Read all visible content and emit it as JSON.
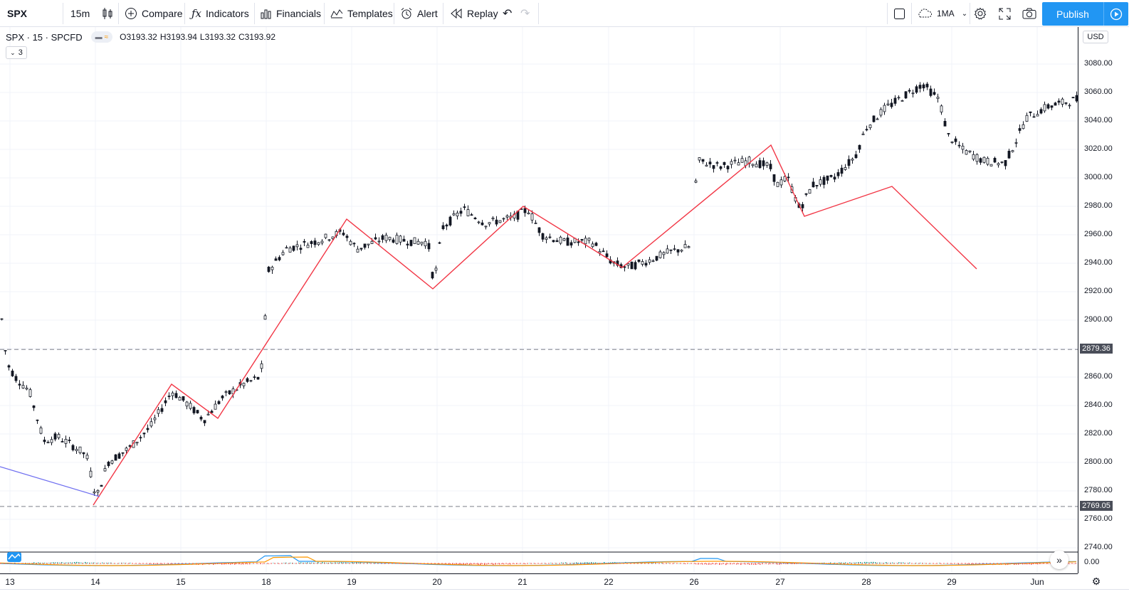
{
  "toolbar": {
    "symbol": "SPX",
    "interval": "15m",
    "compare": "Compare",
    "indicators": "Indicators",
    "financials": "Financials",
    "templates": "Templates",
    "alert": "Alert",
    "replay": "Replay",
    "layout_name": "1MA",
    "publish": "Publish"
  },
  "legend": {
    "title": "SPX · 15 · SPCFD",
    "open": "O3193.32",
    "high": "H3193.94",
    "low": "L3193.32",
    "close": "C3193.92",
    "collapsed_count": "3"
  },
  "price_axis": {
    "currency": "USD",
    "ticks": [
      "3080.00",
      "3060.00",
      "3040.00",
      "3020.00",
      "3000.00",
      "2980.00",
      "2960.00",
      "2940.00",
      "2920.00",
      "2900.00",
      "2880.00",
      "2860.00",
      "2840.00",
      "2820.00",
      "2800.00",
      "2780.00",
      "2760.00",
      "2740.00"
    ],
    "tick_values": [
      3080,
      3060,
      3040,
      3020,
      3000,
      2980,
      2960,
      2940,
      2920,
      2900,
      2880,
      2860,
      2840,
      2820,
      2800,
      2780,
      2760,
      2740
    ],
    "highlight_upper": "2879.36",
    "highlight_lower": "2769.05",
    "oscillator_zero": "0.00"
  },
  "time_axis": {
    "labels": [
      "13",
      "14",
      "15",
      "18",
      "19",
      "20",
      "21",
      "22",
      "26",
      "27",
      "28",
      "29",
      "Jun"
    ]
  },
  "colors": {
    "zigzag": "#f23645",
    "trendline": "#6e6ef0",
    "candle": "#131722",
    "accent": "#2196f3",
    "macd_line": "#2196f3",
    "signal_line": "#ff9800",
    "hist_pos": "#26a69a",
    "hist_neg": "#ef5350"
  },
  "chart_data": {
    "type": "candlestick",
    "symbol": "SPX",
    "interval": "15",
    "ylim": [
      2735,
      3090
    ],
    "horizontal_levels": [
      2879.36,
      2769.05
    ],
    "zigzag": [
      {
        "x": "14",
        "y": 2770
      },
      {
        "x": "15",
        "y": 2855
      },
      {
        "x": "15",
        "y": 2831
      },
      {
        "x": "18-19",
        "y": 2971
      },
      {
        "x": "20",
        "y": 2922
      },
      {
        "x": "21",
        "y": 2980
      },
      {
        "x": "22",
        "y": 2937
      },
      {
        "x": "26-27",
        "y": 3023
      },
      {
        "x": "27",
        "y": 2973
      },
      {
        "x": "28",
        "y": 2994
      },
      {
        "x": "29",
        "y": 2936
      }
    ],
    "trendline": [
      {
        "x": "13",
        "y": 2797
      },
      {
        "x": "14",
        "y": 2776
      }
    ],
    "session_closes": [
      {
        "x": "13",
        "y": 2890
      },
      {
        "x": "14",
        "y": 2800
      },
      {
        "x": "15",
        "y": 2840
      },
      {
        "x": "18",
        "y": 2955
      },
      {
        "x": "19",
        "y": 2950
      },
      {
        "x": "20",
        "y": 2965
      },
      {
        "x": "21",
        "y": 2955
      },
      {
        "x": "22",
        "y": 2953
      },
      {
        "x": "26",
        "y": 3010
      },
      {
        "x": "27",
        "y": 2995
      },
      {
        "x": "28",
        "y": 3060
      },
      {
        "x": "29",
        "y": 3015
      },
      {
        "x": "Jun",
        "y": 3055
      }
    ]
  }
}
